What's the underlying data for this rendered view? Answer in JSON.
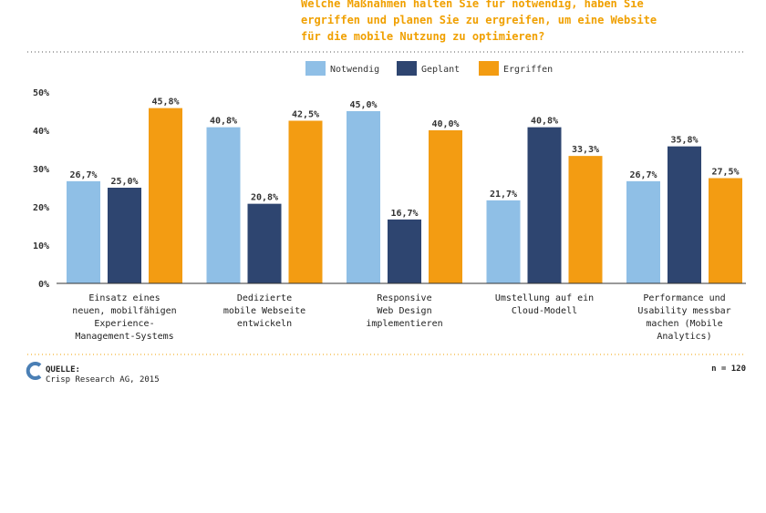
{
  "title_lines": [
    "Welche Maßnahmen halten Sie für notwendig, haben Sie",
    "ergriffen und planen Sie zu ergreifen, um eine Website",
    "für die mobile Nutzung zu optimieren?"
  ],
  "colors": {
    "title": "#f0a000",
    "Notwendig": "#8fbfe6",
    "Geplant": "#2e4570",
    "Ergriffen": "#f39c12",
    "dotted_rule_top": "#555555",
    "dotted_rule_bottom": "#f0a000"
  },
  "chart_data": {
    "type": "bar",
    "categories": [
      [
        "Einsatz eines",
        "neuen, mobilfähigen",
        "Experience-",
        "Management-Systems"
      ],
      [
        "Dedizierte",
        "mobile Webseite",
        "entwickeln"
      ],
      [
        "Responsive",
        "Web Design",
        "implementieren"
      ],
      [
        "Umstellung auf ein",
        "Cloud-Modell"
      ],
      [
        "Performance und",
        "Usability messbar",
        "machen (Mobile",
        "Analytics)"
      ]
    ],
    "series": [
      {
        "name": "Notwendig",
        "values": [
          26.7,
          40.8,
          45.0,
          21.7,
          26.7
        ],
        "labels": [
          "26,7%",
          "40,8%",
          "45,0%",
          "21,7%",
          "26,7%"
        ]
      },
      {
        "name": "Geplant",
        "values": [
          25.0,
          20.8,
          16.7,
          40.8,
          35.8
        ],
        "labels": [
          "25,0%",
          "20,8%",
          "16,7%",
          "40,8%",
          "35,8%"
        ]
      },
      {
        "name": "Ergriffen",
        "values": [
          45.8,
          42.5,
          40.0,
          33.3,
          27.5
        ],
        "labels": [
          "45,8%",
          "42,5%",
          "40,0%",
          "33,3%",
          "27,5%"
        ]
      }
    ],
    "ylim": [
      0,
      50
    ],
    "yticks": [
      0,
      10,
      20,
      30,
      40,
      50
    ],
    "ytick_labels": [
      "0%",
      "10%",
      "20%",
      "30%",
      "40%",
      "50%"
    ],
    "legend_position": "top-center",
    "grid": false
  },
  "footer": {
    "source_label": "QUELLE:",
    "source_text": "Crisp Research AG, 2015",
    "n_label": "n = 120"
  }
}
